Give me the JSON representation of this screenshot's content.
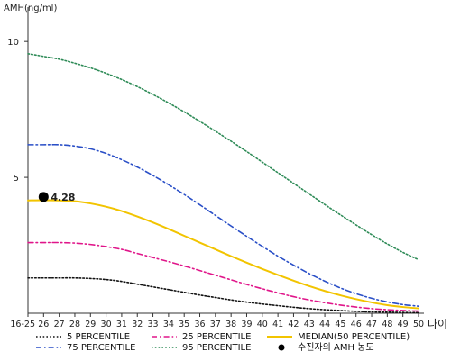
{
  "chart_data": {
    "type": "line",
    "ylabel": "AMH(ng/ml)",
    "xlabel": "나이",
    "ylim": [
      0,
      11
    ],
    "y_ticks": [
      "5",
      "10"
    ],
    "y_tick_values": [
      5,
      10
    ],
    "categories": [
      "16-25",
      "26",
      "27",
      "28",
      "29",
      "30",
      "31",
      "32",
      "33",
      "34",
      "35",
      "36",
      "37",
      "38",
      "39",
      "40",
      "41",
      "42",
      "43",
      "44",
      "45",
      "46",
      "47",
      "48",
      "49",
      "50"
    ],
    "series": [
      {
        "name": "5 PERCENTILE",
        "color": "#111111",
        "dash": "dot",
        "values": [
          1.3,
          1.3,
          1.3,
          1.3,
          1.28,
          1.24,
          1.17,
          1.07,
          0.97,
          0.87,
          0.77,
          0.67,
          0.58,
          0.49,
          0.41,
          0.34,
          0.28,
          0.22,
          0.17,
          0.13,
          0.1,
          0.07,
          0.05,
          0.04,
          0.03,
          0.02
        ]
      },
      {
        "name": "25 PERCENTILE",
        "color": "#e0168a",
        "dash": "dashdot",
        "values": [
          2.6,
          2.6,
          2.6,
          2.58,
          2.53,
          2.45,
          2.35,
          2.2,
          2.05,
          1.9,
          1.74,
          1.57,
          1.4,
          1.23,
          1.06,
          0.9,
          0.75,
          0.61,
          0.49,
          0.39,
          0.3,
          0.23,
          0.17,
          0.13,
          0.1,
          0.08
        ]
      },
      {
        "name": "MEDIAN(50 PERCENTILE)",
        "color": "#f2c400",
        "dash": "solid",
        "values": [
          4.15,
          4.16,
          4.15,
          4.12,
          4.04,
          3.92,
          3.76,
          3.56,
          3.34,
          3.1,
          2.85,
          2.6,
          2.35,
          2.1,
          1.86,
          1.63,
          1.41,
          1.2,
          1.0,
          0.82,
          0.66,
          0.52,
          0.4,
          0.3,
          0.23,
          0.18
        ]
      },
      {
        "name": "75 PERCENTILE",
        "color": "#2a4fc7",
        "dash": "dashdot",
        "values": [
          6.2,
          6.2,
          6.2,
          6.15,
          6.05,
          5.88,
          5.65,
          5.38,
          5.07,
          4.73,
          4.37,
          3.99,
          3.6,
          3.21,
          2.83,
          2.46,
          2.1,
          1.77,
          1.46,
          1.18,
          0.93,
          0.72,
          0.55,
          0.42,
          0.32,
          0.26
        ]
      },
      {
        "name": "95 PERCENTILE",
        "color": "#2e8b57",
        "dash": "dot",
        "values": [
          9.55,
          9.45,
          9.35,
          9.2,
          9.03,
          8.83,
          8.6,
          8.34,
          8.05,
          7.74,
          7.41,
          7.06,
          6.7,
          6.33,
          5.95,
          5.56,
          5.17,
          4.78,
          4.39,
          4.0,
          3.62,
          3.25,
          2.89,
          2.55,
          2.24,
          1.97
        ]
      }
    ],
    "marker": {
      "name": "수진자의 AMH 농도",
      "category": "26",
      "value": 4.28,
      "label": "4.28",
      "color": "#000000"
    },
    "legend": {
      "placement": "bottom",
      "items": [
        {
          "label": "5 PERCENTILE",
          "color": "#111111",
          "dash": "dot",
          "kind": "line"
        },
        {
          "label": "25 PERCENTILE",
          "color": "#e0168a",
          "dash": "dashdot",
          "kind": "line"
        },
        {
          "label": "MEDIAN(50 PERCENTILE)",
          "color": "#f2c400",
          "dash": "solid",
          "kind": "line"
        },
        {
          "label": "75 PERCENTILE",
          "color": "#2a4fc7",
          "dash": "dashdot",
          "kind": "line"
        },
        {
          "label": "95 PERCENTILE",
          "color": "#2e8b57",
          "dash": "dot",
          "kind": "line"
        },
        {
          "label": "수진자의 AMH 농도",
          "color": "#000000",
          "kind": "marker"
        }
      ]
    },
    "grid": false
  }
}
